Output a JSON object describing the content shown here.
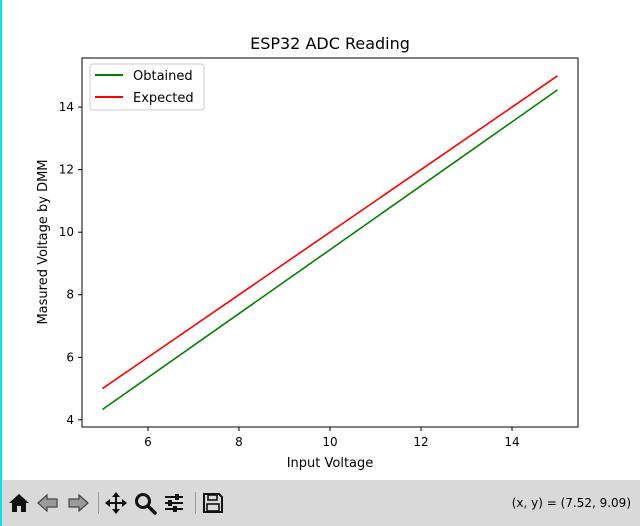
{
  "chart_data": {
    "type": "line",
    "title": "ESP32 ADC Reading",
    "xlabel": "Input Voltage",
    "ylabel": "Masured Voltage by DMM",
    "xlim": [
      4.55,
      15.45
    ],
    "ylim": [
      3.77,
      15.57
    ],
    "xticks": [
      6,
      8,
      10,
      12,
      14
    ],
    "yticks": [
      4,
      6,
      8,
      10,
      12,
      14
    ],
    "grid": false,
    "legend_position": "top-left",
    "series": [
      {
        "name": "Obtained",
        "color": "#008000",
        "x": [
          5,
          15
        ],
        "y": [
          4.33,
          14.55
        ]
      },
      {
        "name": "Expected",
        "color": "#ff0000",
        "x": [
          5,
          15
        ],
        "y": [
          5.0,
          15.0
        ]
      }
    ]
  },
  "toolbar": {
    "buttons": [
      {
        "name": "home-button",
        "icon": "home-icon"
      },
      {
        "name": "back-button",
        "icon": "arrow-left-icon"
      },
      {
        "name": "forward-button",
        "icon": "arrow-right-icon"
      },
      {
        "name": "pan-button",
        "icon": "move-icon"
      },
      {
        "name": "zoom-button",
        "icon": "magnifier-icon"
      },
      {
        "name": "configure-subplots-button",
        "icon": "sliders-icon"
      },
      {
        "name": "save-button",
        "icon": "floppy-disk-icon"
      }
    ],
    "coords_text": "(x, y) = (7.52, 9.09)"
  }
}
